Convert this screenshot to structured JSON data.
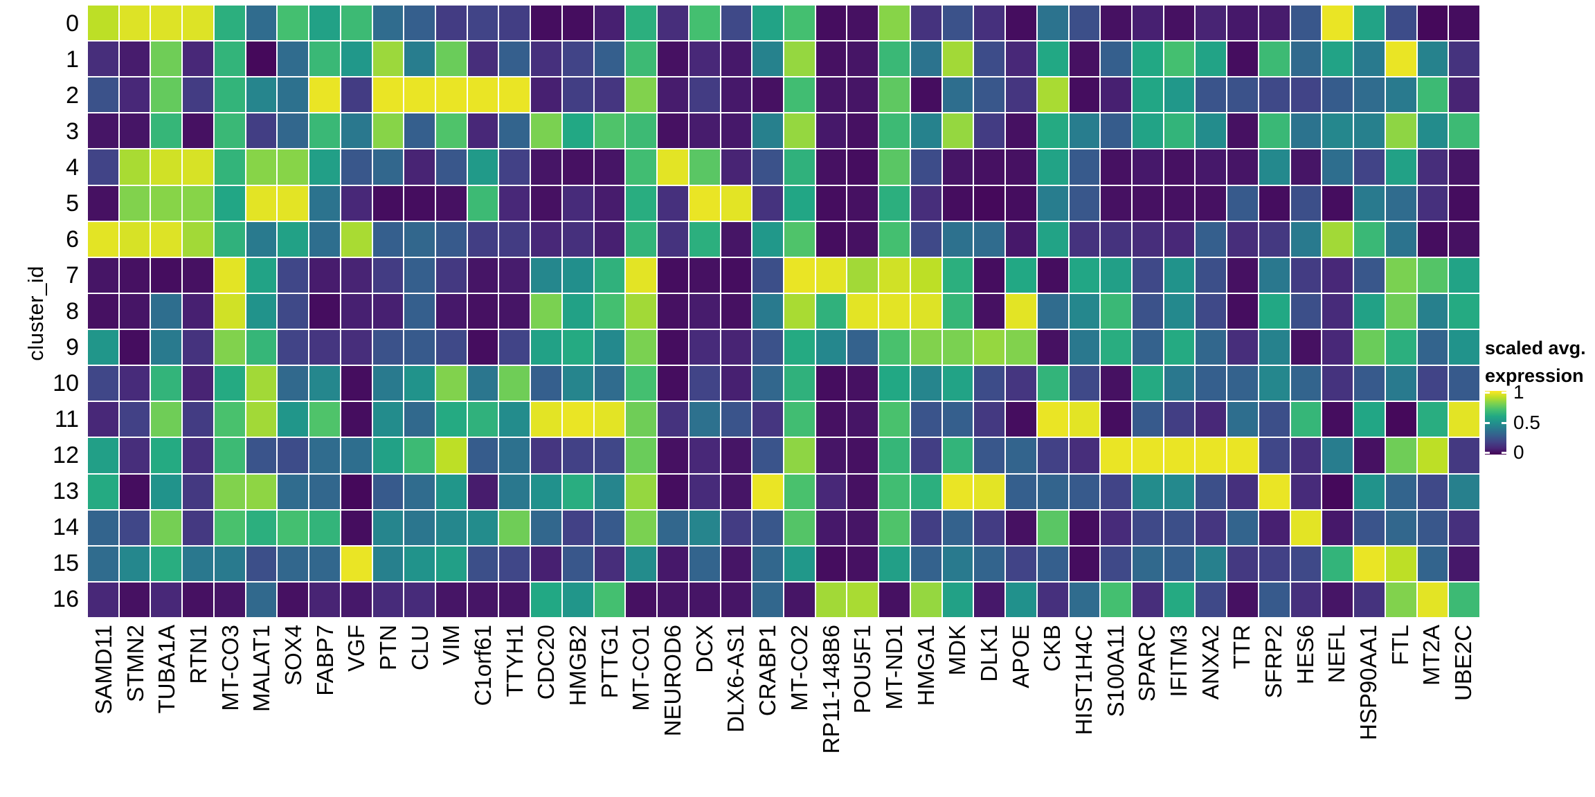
{
  "figure": {
    "background": "#ffffff",
    "text_color": "#000000"
  },
  "chart_data": {
    "type": "heatmap",
    "title": "",
    "xlabel": "",
    "ylabel": "cluster_id",
    "x_categories": [
      "SAMD11",
      "STMN2",
      "TUBA1A",
      "RTN1",
      "MT-CO3",
      "MALAT1",
      "SOX4",
      "FABP7",
      "VGF",
      "PTN",
      "CLU",
      "VIM",
      "C1orf61",
      "TTYH1",
      "CDC20",
      "HMGB2",
      "PTTG1",
      "MT-CO1",
      "NEUROD6",
      "DCX",
      "DLX6-AS1",
      "CRABP1",
      "MT-CO2",
      "RP11-148B6",
      "POU5F1",
      "MT-ND1",
      "HMGA1",
      "MDK",
      "DLK1",
      "APOE",
      "CKB",
      "HIST1H4C",
      "S100A11",
      "SPARC",
      "IFITM3",
      "ANXA2",
      "TTR",
      "SFRP2",
      "HES6",
      "NEFL",
      "HSP90AA1",
      "FTL",
      "MT2A",
      "UBE2C"
    ],
    "y_categories": [
      "0",
      "1",
      "2",
      "3",
      "4",
      "5",
      "6",
      "7",
      "8",
      "9",
      "10",
      "11",
      "12",
      "13",
      "14",
      "15",
      "16"
    ],
    "values": [
      [
        0.9,
        0.95,
        0.95,
        0.95,
        0.63,
        0.35,
        0.7,
        0.57,
        0.68,
        0.35,
        0.3,
        0.17,
        0.2,
        0.18,
        0.03,
        0.03,
        0.08,
        0.63,
        0.12,
        0.7,
        0.22,
        0.58,
        0.7,
        0.03,
        0.04,
        0.82,
        0.14,
        0.25,
        0.13,
        0.03,
        0.38,
        0.24,
        0.04,
        0.08,
        0.04,
        0.09,
        0.06,
        0.07,
        0.27,
        0.97,
        0.58,
        0.23,
        0.02,
        0.03
      ],
      [
        0.12,
        0.07,
        0.78,
        0.1,
        0.65,
        0.02,
        0.35,
        0.67,
        0.53,
        0.85,
        0.42,
        0.77,
        0.12,
        0.3,
        0.13,
        0.2,
        0.3,
        0.68,
        0.04,
        0.1,
        0.06,
        0.44,
        0.84,
        0.04,
        0.05,
        0.67,
        0.38,
        0.86,
        0.23,
        0.1,
        0.6,
        0.04,
        0.3,
        0.6,
        0.7,
        0.58,
        0.03,
        0.68,
        0.34,
        0.58,
        0.41,
        0.97,
        0.44,
        0.14
      ],
      [
        0.25,
        0.1,
        0.76,
        0.17,
        0.65,
        0.45,
        0.37,
        0.97,
        0.17,
        0.97,
        0.97,
        0.97,
        0.97,
        0.97,
        0.08,
        0.18,
        0.15,
        0.81,
        0.07,
        0.17,
        0.06,
        0.04,
        0.69,
        0.05,
        0.05,
        0.75,
        0.03,
        0.36,
        0.27,
        0.15,
        0.87,
        0.03,
        0.08,
        0.59,
        0.53,
        0.26,
        0.25,
        0.22,
        0.2,
        0.29,
        0.35,
        0.41,
        0.68,
        0.09
      ],
      [
        0.05,
        0.05,
        0.66,
        0.04,
        0.67,
        0.18,
        0.33,
        0.67,
        0.4,
        0.82,
        0.3,
        0.72,
        0.1,
        0.32,
        0.8,
        0.6,
        0.72,
        0.68,
        0.04,
        0.07,
        0.06,
        0.43,
        0.84,
        0.06,
        0.04,
        0.68,
        0.44,
        0.84,
        0.17,
        0.04,
        0.61,
        0.42,
        0.29,
        0.58,
        0.65,
        0.48,
        0.04,
        0.67,
        0.38,
        0.46,
        0.43,
        0.83,
        0.48,
        0.68
      ],
      [
        0.2,
        0.87,
        0.93,
        0.94,
        0.65,
        0.82,
        0.82,
        0.56,
        0.27,
        0.33,
        0.09,
        0.27,
        0.54,
        0.19,
        0.05,
        0.04,
        0.05,
        0.69,
        0.96,
        0.74,
        0.09,
        0.25,
        0.64,
        0.04,
        0.03,
        0.74,
        0.23,
        0.05,
        0.04,
        0.04,
        0.58,
        0.28,
        0.04,
        0.06,
        0.04,
        0.06,
        0.05,
        0.47,
        0.05,
        0.36,
        0.2,
        0.57,
        0.12,
        0.05
      ],
      [
        0.04,
        0.81,
        0.82,
        0.82,
        0.59,
        0.96,
        0.96,
        0.38,
        0.1,
        0.03,
        0.03,
        0.04,
        0.68,
        0.1,
        0.04,
        0.11,
        0.07,
        0.62,
        0.13,
        0.97,
        0.96,
        0.14,
        0.59,
        0.03,
        0.04,
        0.63,
        0.12,
        0.03,
        0.02,
        0.03,
        0.42,
        0.27,
        0.04,
        0.04,
        0.04,
        0.04,
        0.28,
        0.03,
        0.24,
        0.03,
        0.41,
        0.35,
        0.13,
        0.03
      ],
      [
        0.96,
        0.94,
        0.95,
        0.86,
        0.64,
        0.41,
        0.57,
        0.36,
        0.87,
        0.3,
        0.33,
        0.28,
        0.18,
        0.17,
        0.1,
        0.13,
        0.08,
        0.65,
        0.14,
        0.63,
        0.05,
        0.53,
        0.72,
        0.03,
        0.04,
        0.7,
        0.22,
        0.37,
        0.35,
        0.06,
        0.58,
        0.14,
        0.14,
        0.12,
        0.1,
        0.3,
        0.12,
        0.16,
        0.41,
        0.86,
        0.67,
        0.38,
        0.03,
        0.04
      ],
      [
        0.05,
        0.04,
        0.03,
        0.04,
        0.96,
        0.58,
        0.21,
        0.07,
        0.09,
        0.17,
        0.3,
        0.16,
        0.05,
        0.07,
        0.46,
        0.49,
        0.64,
        0.96,
        0.03,
        0.04,
        0.03,
        0.24,
        0.97,
        0.96,
        0.86,
        0.93,
        0.9,
        0.63,
        0.03,
        0.6,
        0.03,
        0.59,
        0.56,
        0.22,
        0.51,
        0.24,
        0.04,
        0.4,
        0.17,
        0.1,
        0.27,
        0.8,
        0.73,
        0.58
      ],
      [
        0.04,
        0.05,
        0.36,
        0.08,
        0.93,
        0.51,
        0.22,
        0.03,
        0.08,
        0.08,
        0.3,
        0.06,
        0.04,
        0.05,
        0.8,
        0.57,
        0.7,
        0.86,
        0.04,
        0.07,
        0.04,
        0.41,
        0.87,
        0.64,
        0.96,
        0.96,
        0.95,
        0.66,
        0.04,
        0.96,
        0.35,
        0.46,
        0.67,
        0.25,
        0.47,
        0.22,
        0.03,
        0.6,
        0.24,
        0.11,
        0.57,
        0.78,
        0.43,
        0.61
      ],
      [
        0.52,
        0.03,
        0.41,
        0.14,
        0.81,
        0.66,
        0.2,
        0.15,
        0.12,
        0.25,
        0.28,
        0.22,
        0.03,
        0.2,
        0.57,
        0.61,
        0.47,
        0.8,
        0.03,
        0.11,
        0.09,
        0.25,
        0.61,
        0.46,
        0.31,
        0.71,
        0.81,
        0.8,
        0.84,
        0.81,
        0.04,
        0.4,
        0.62,
        0.31,
        0.61,
        0.33,
        0.12,
        0.44,
        0.04,
        0.1,
        0.77,
        0.63,
        0.32,
        0.51
      ],
      [
        0.21,
        0.11,
        0.65,
        0.09,
        0.61,
        0.86,
        0.34,
        0.46,
        0.03,
        0.41,
        0.51,
        0.81,
        0.39,
        0.78,
        0.3,
        0.45,
        0.35,
        0.7,
        0.03,
        0.2,
        0.08,
        0.33,
        0.64,
        0.03,
        0.04,
        0.6,
        0.45,
        0.58,
        0.23,
        0.15,
        0.65,
        0.22,
        0.04,
        0.61,
        0.4,
        0.3,
        0.31,
        0.46,
        0.32,
        0.14,
        0.28,
        0.41,
        0.2,
        0.28
      ],
      [
        0.1,
        0.19,
        0.78,
        0.17,
        0.71,
        0.86,
        0.52,
        0.72,
        0.03,
        0.48,
        0.34,
        0.61,
        0.64,
        0.48,
        0.96,
        0.97,
        0.96,
        0.78,
        0.14,
        0.37,
        0.26,
        0.15,
        0.69,
        0.04,
        0.05,
        0.71,
        0.26,
        0.3,
        0.16,
        0.03,
        0.97,
        0.96,
        0.03,
        0.28,
        0.18,
        0.1,
        0.36,
        0.24,
        0.66,
        0.03,
        0.59,
        0.02,
        0.62,
        0.96
      ],
      [
        0.56,
        0.12,
        0.61,
        0.13,
        0.68,
        0.26,
        0.23,
        0.35,
        0.36,
        0.57,
        0.68,
        0.9,
        0.29,
        0.37,
        0.15,
        0.19,
        0.21,
        0.77,
        0.04,
        0.1,
        0.05,
        0.26,
        0.83,
        0.05,
        0.04,
        0.66,
        0.18,
        0.65,
        0.27,
        0.32,
        0.19,
        0.12,
        0.97,
        0.97,
        0.97,
        0.97,
        0.97,
        0.21,
        0.13,
        0.42,
        0.04,
        0.78,
        0.9,
        0.16
      ],
      [
        0.61,
        0.03,
        0.51,
        0.16,
        0.81,
        0.83,
        0.35,
        0.33,
        0.02,
        0.28,
        0.35,
        0.52,
        0.07,
        0.4,
        0.5,
        0.62,
        0.45,
        0.84,
        0.03,
        0.11,
        0.05,
        0.97,
        0.71,
        0.1,
        0.04,
        0.69,
        0.63,
        0.97,
        0.96,
        0.3,
        0.32,
        0.28,
        0.2,
        0.48,
        0.47,
        0.24,
        0.13,
        0.97,
        0.11,
        0.02,
        0.51,
        0.32,
        0.22,
        0.43
      ],
      [
        0.32,
        0.21,
        0.79,
        0.16,
        0.71,
        0.63,
        0.7,
        0.65,
        0.03,
        0.45,
        0.39,
        0.46,
        0.48,
        0.78,
        0.33,
        0.19,
        0.28,
        0.8,
        0.33,
        0.45,
        0.17,
        0.27,
        0.73,
        0.06,
        0.05,
        0.72,
        0.18,
        0.31,
        0.17,
        0.04,
        0.74,
        0.03,
        0.11,
        0.22,
        0.24,
        0.15,
        0.32,
        0.08,
        0.96,
        0.06,
        0.26,
        0.33,
        0.27,
        0.13
      ],
      [
        0.35,
        0.46,
        0.62,
        0.4,
        0.41,
        0.24,
        0.33,
        0.33,
        0.97,
        0.43,
        0.51,
        0.56,
        0.24,
        0.21,
        0.08,
        0.27,
        0.12,
        0.48,
        0.06,
        0.32,
        0.05,
        0.33,
        0.53,
        0.03,
        0.04,
        0.56,
        0.31,
        0.41,
        0.32,
        0.2,
        0.3,
        0.03,
        0.22,
        0.34,
        0.3,
        0.43,
        0.16,
        0.19,
        0.22,
        0.65,
        0.97,
        0.9,
        0.32,
        0.06
      ],
      [
        0.1,
        0.04,
        0.1,
        0.04,
        0.05,
        0.34,
        0.04,
        0.09,
        0.06,
        0.11,
        0.11,
        0.05,
        0.05,
        0.05,
        0.6,
        0.52,
        0.7,
        0.04,
        0.05,
        0.05,
        0.05,
        0.33,
        0.05,
        0.86,
        0.87,
        0.04,
        0.84,
        0.57,
        0.06,
        0.5,
        0.13,
        0.35,
        0.7,
        0.12,
        0.61,
        0.22,
        0.04,
        0.28,
        0.13,
        0.05,
        0.14,
        0.81,
        0.96,
        0.68
      ]
    ],
    "colormap": "viridis",
    "colormap_stops": [
      "#440154",
      "#482878",
      "#414487",
      "#355f8d",
      "#2a788e",
      "#21918c",
      "#22a884",
      "#44bf70",
      "#7ad151",
      "#bddf26",
      "#fde725"
    ],
    "value_range": [
      0,
      1
    ],
    "grid_gap_color": "#ffffff",
    "legend": {
      "position": "right",
      "title_line1": "scaled avg.",
      "title_line2": "expression",
      "ticks": [
        {
          "label": "1",
          "value": 1
        },
        {
          "label": "0.5",
          "value": 0.5
        },
        {
          "label": "0",
          "value": 0
        }
      ]
    }
  }
}
